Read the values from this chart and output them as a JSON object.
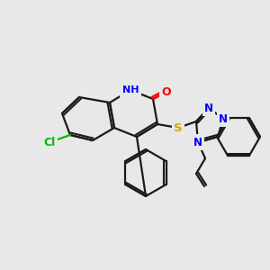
{
  "background_color": "#e8e8e8",
  "bond_color": "#1a1a1a",
  "atom_colors": {
    "Cl": "#00bb00",
    "S": "#ccaa00",
    "N": "#0000ff",
    "O": "#ff0000",
    "NH": "#0000ff"
  }
}
